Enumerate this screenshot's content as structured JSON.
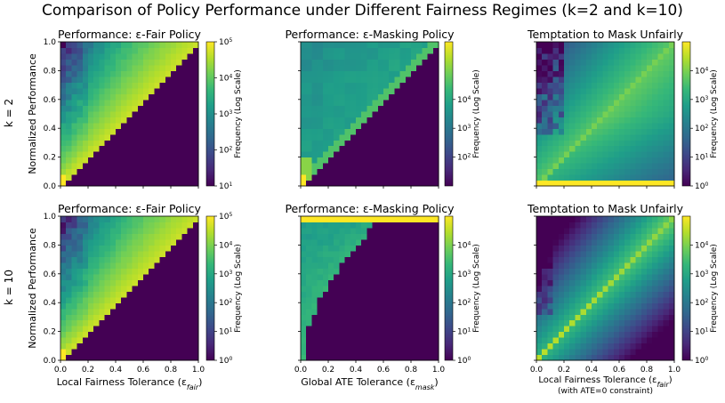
{
  "title": "Comparison of Policy Performance under Different Fairness Regimes (k=2 and k=10)",
  "row_labels": [
    "k = 2",
    "k = 10"
  ],
  "colorbar_label": "Frequency (Log Scale)",
  "colormap": [
    "#440154",
    "#482878",
    "#3e4989",
    "#31688e",
    "#26828e",
    "#1f9e89",
    "#35b779",
    "#6ece58",
    "#b5de2b",
    "#fde725"
  ],
  "chart_data": [
    {
      "type": "heatmap",
      "id": "k2-fair",
      "title": "Performance: ε-Fair Policy",
      "xlabel": "",
      "ylabel": "Normalized Performance",
      "xlim": [
        0.0,
        1.0
      ],
      "ylim": [
        0.0,
        1.0
      ],
      "xticks": [],
      "yticks": [
        "0.0",
        "0.2",
        "0.4",
        "0.6",
        "0.8",
        "1.0"
      ],
      "pattern": "fair",
      "colorbar": {
        "scale": "log",
        "range": [
          10,
          100000
        ],
        "ticks": [
          "10^1",
          "10^2",
          "10^3",
          "10^4",
          "10^5"
        ]
      }
    },
    {
      "type": "heatmap",
      "id": "k2-mask",
      "title": "Performance: ε-Masking Policy",
      "xlabel": "",
      "ylabel": "",
      "xlim": [
        0.0,
        1.0
      ],
      "ylim": [
        0.0,
        1.0
      ],
      "xticks": [],
      "yticks": [],
      "pattern": "mask_k2",
      "colorbar": {
        "scale": "log",
        "range": [
          10,
          1000000
        ],
        "ticks": [
          "10^2",
          "10^3",
          "10^4"
        ]
      }
    },
    {
      "type": "heatmap",
      "id": "k2-temptation",
      "title": "Temptation to Mask Unfairly",
      "xlabel": "",
      "ylabel": "",
      "xlim": [
        0.0,
        1.0
      ],
      "ylim": [
        0.0,
        1.0
      ],
      "xticks": [],
      "yticks": [],
      "pattern": "tempt_k2",
      "colorbar": {
        "scale": "log",
        "range": [
          1,
          100000
        ],
        "ticks": [
          "10^0",
          "10^1",
          "10^2",
          "10^3",
          "10^4"
        ]
      }
    },
    {
      "type": "heatmap",
      "id": "k10-fair",
      "title": "Performance: ε-Fair Policy",
      "xlabel": "Local Fairness Tolerance (ε_fair)",
      "ylabel": "Normalized Performance",
      "xlim": [
        0.0,
        1.0
      ],
      "ylim": [
        0.0,
        1.0
      ],
      "xticks": [
        "0.0",
        "0.2",
        "0.4",
        "0.6",
        "0.8",
        "1.0"
      ],
      "yticks": [
        "0.0",
        "0.2",
        "0.4",
        "0.6",
        "0.8",
        "1.0"
      ],
      "pattern": "fair",
      "colorbar": {
        "scale": "log",
        "range": [
          1,
          100000
        ],
        "ticks": [
          "10^0",
          "10^1",
          "10^2",
          "10^3",
          "10^4",
          "10^5"
        ]
      }
    },
    {
      "type": "heatmap",
      "id": "k10-mask",
      "title": "Performance: ε-Masking Policy",
      "xlabel": "Global ATE Tolerance (ε_mask)",
      "ylabel": "",
      "xlim": [
        0.0,
        1.0
      ],
      "ylim": [
        0.0,
        1.0
      ],
      "xticks": [
        "0.0",
        "0.2",
        "0.4",
        "0.6",
        "0.8",
        "1.0"
      ],
      "yticks": [],
      "pattern": "mask_k10",
      "colorbar": {
        "scale": "log",
        "range": [
          1,
          100000
        ],
        "ticks": [
          "10^0",
          "10^1",
          "10^2",
          "10^3",
          "10^4"
        ]
      }
    },
    {
      "type": "heatmap",
      "id": "k10-temptation",
      "title": "Temptation to Mask Unfairly",
      "xlabel": "Local Fairness Tolerance (ε_fair)",
      "xlabel2": "(with ATE=0 constraint)",
      "ylabel": "",
      "xlim": [
        0.0,
        1.0
      ],
      "ylim": [
        0.0,
        1.0
      ],
      "xticks": [
        "0.0",
        "0.2",
        "0.4",
        "0.6",
        "0.8",
        "1.0"
      ],
      "yticks": [],
      "pattern": "tempt_k10",
      "colorbar": {
        "scale": "log",
        "range": [
          1,
          100000
        ],
        "ticks": [
          "10^0",
          "10^1",
          "10^2",
          "10^3",
          "10^4"
        ]
      }
    }
  ]
}
